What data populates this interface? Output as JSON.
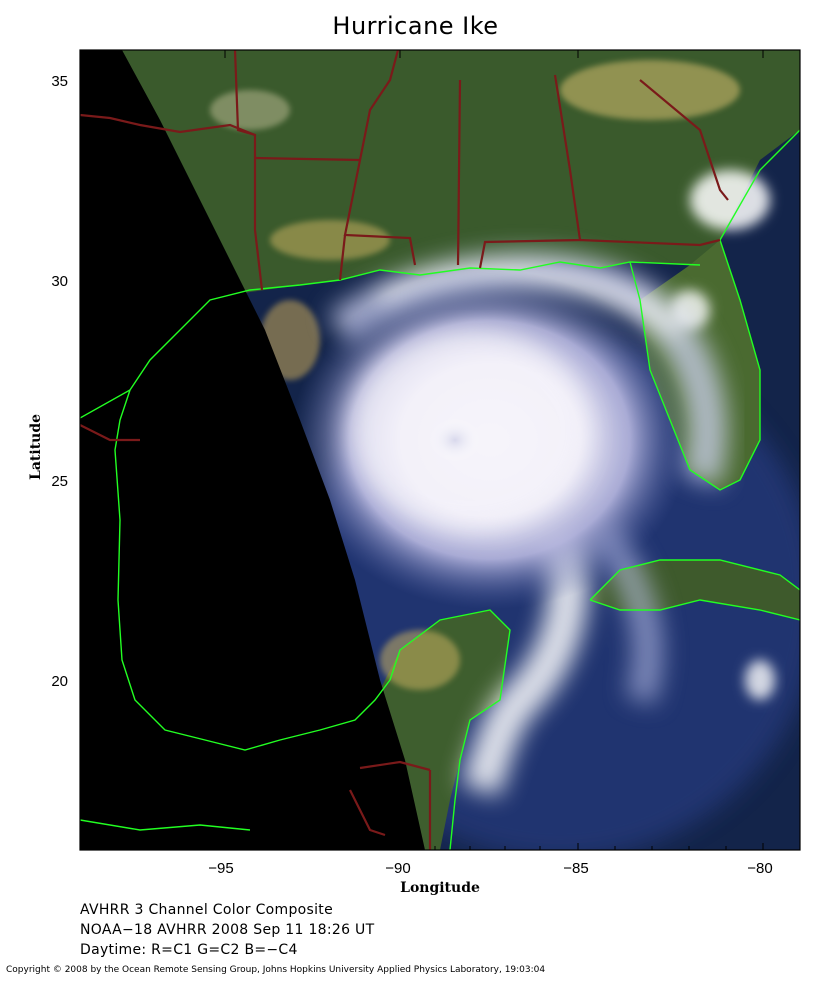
{
  "title": "Hurricane Ike",
  "x_axis": {
    "label": "Longitude",
    "ticks": [
      "−95",
      "−90",
      "−85",
      "−80"
    ]
  },
  "y_axis": {
    "label": "Latitude",
    "ticks": [
      "35",
      "30",
      "25",
      "20"
    ]
  },
  "info_lines": [
    "AVHRR 3 Channel Color Composite",
    "NOAA−18 AVHRR 2008 Sep 11 18:26 UT",
    "Daytime: R=C1 G=C2 B=−C4"
  ],
  "copyright": "Copyright © 2008 by the Ocean Remote Sensing Group, Johns Hopkins University Applied Physics Laboratory, 19:03:04",
  "colors": {
    "coastline": "#22ff22",
    "state_border": "#7a1a1a",
    "land": "#3a5a2a",
    "ocean": "#0c1c3c",
    "no_data": "#000000",
    "cloud": "#ffffff"
  }
}
